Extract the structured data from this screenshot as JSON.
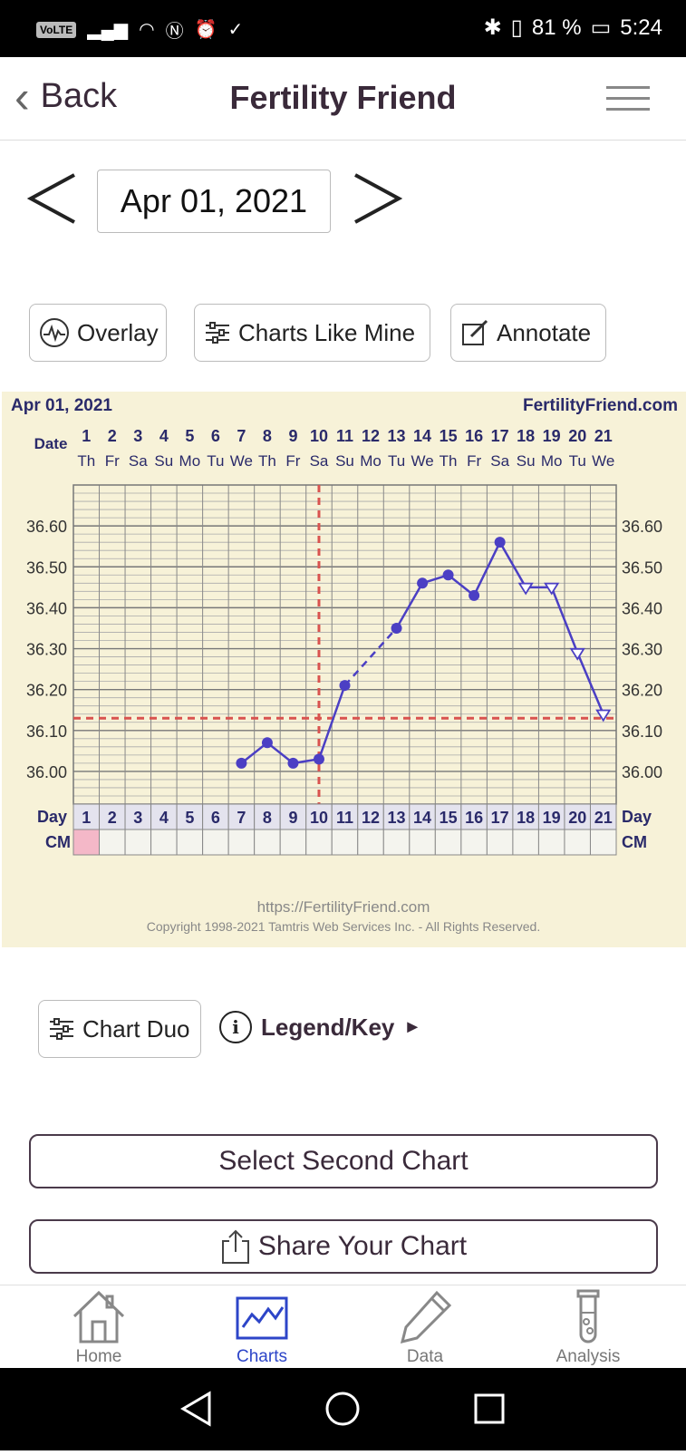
{
  "status_bar": {
    "volte": "VoLTE",
    "battery": "81 %",
    "time": "5:24"
  },
  "header": {
    "back_label": "Back",
    "title": "Fertility Friend"
  },
  "date_nav": {
    "date": "Apr 01, 2021"
  },
  "actions": {
    "overlay": "Overlay",
    "charts_like_mine": "Charts Like Mine",
    "annotate": "Annotate"
  },
  "chart_data": {
    "type": "line",
    "title": "Apr 01, 2021",
    "brand": "FertilityFriend.com",
    "date_label": "Date",
    "day_label": "Day",
    "cm_label": "CM",
    "days": [
      1,
      2,
      3,
      4,
      5,
      6,
      7,
      8,
      9,
      10,
      11,
      12,
      13,
      14,
      15,
      16,
      17,
      18,
      19,
      20,
      21
    ],
    "weekdays": [
      "Th",
      "Fr",
      "Sa",
      "Su",
      "Mo",
      "Tu",
      "We",
      "Th",
      "Fr",
      "Sa",
      "Su",
      "Mo",
      "Tu",
      "We",
      "Th",
      "Fr",
      "Sa",
      "Su",
      "Mo",
      "Tu",
      "We"
    ],
    "y_ticks": [
      "36.60",
      "36.50",
      "36.40",
      "36.30",
      "36.20",
      "36.10",
      "36.00"
    ],
    "ylim": [
      35.92,
      36.7
    ],
    "temps": [
      null,
      null,
      null,
      null,
      null,
      null,
      36.02,
      36.07,
      36.02,
      36.03,
      36.21,
      null,
      36.35,
      36.46,
      36.48,
      36.43,
      36.56,
      36.45,
      36.45,
      36.29,
      36.14
    ],
    "open_markers_from_day": 18,
    "dashed_gap": [
      11,
      13
    ],
    "coverline": 36.13,
    "ovulation_day": 10,
    "cm_days": [
      1
    ],
    "footer_url": "https://FertilityFriend.com",
    "footer_copyright": "Copyright 1998-2021 Tamtris Web Services Inc. - All Rights Reserved.",
    "colors": {
      "line": "#4b3fc4",
      "coverline": "#d9534f",
      "bg": "#f7f2d8",
      "cm": "#f4b8c8",
      "text": "#2a2a6a"
    }
  },
  "lower": {
    "chart_duo": "Chart Duo",
    "legend": "Legend/Key",
    "legend_arrow": "►",
    "select_second": "Select Second Chart",
    "share": "Share Your Chart"
  },
  "tabs": [
    {
      "label": "Home"
    },
    {
      "label": "Charts"
    },
    {
      "label": "Data"
    },
    {
      "label": "Analysis"
    }
  ]
}
